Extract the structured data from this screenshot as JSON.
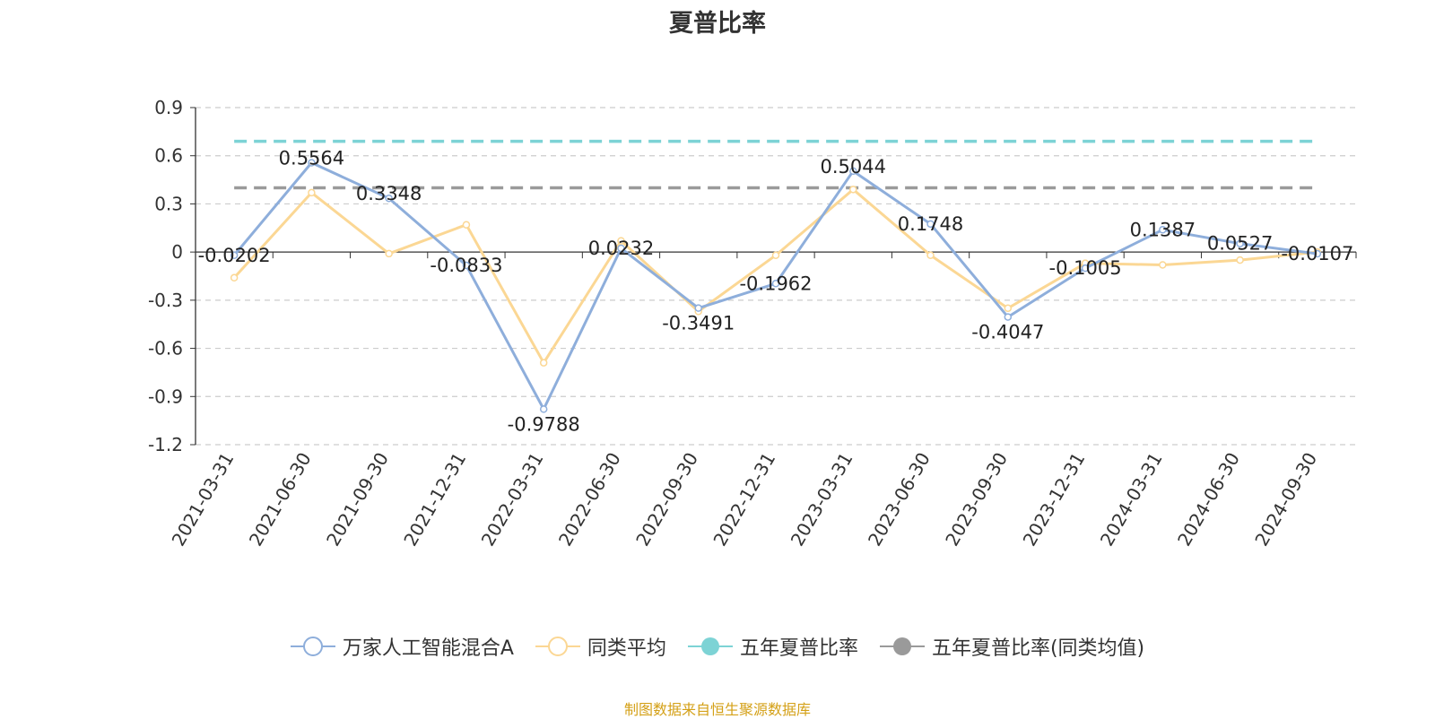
{
  "colors": {
    "series1": "#8eaedb",
    "series2": "#fbd794",
    "five_year": "#7dd3d5",
    "five_year_avg": "#9a9a9a",
    "axis": "#333333",
    "grid": "#cccccc",
    "source": "#d4a017"
  },
  "chart_data": {
    "type": "line",
    "title": "夏普比率",
    "categories": [
      "2021-03-31",
      "2021-06-30",
      "2021-09-30",
      "2021-12-31",
      "2022-03-31",
      "2022-06-30",
      "2022-09-30",
      "2022-12-31",
      "2023-03-31",
      "2023-06-30",
      "2023-09-30",
      "2023-12-31",
      "2024-03-31",
      "2024-06-30",
      "2024-09-30"
    ],
    "yticks": [
      "0.9",
      "0.6",
      "0.3",
      "0",
      "-0.3",
      "-0.6",
      "-0.9",
      "-1.2"
    ],
    "ylim": [
      -1.2,
      0.9
    ],
    "grid": true,
    "legend_position": "bottom",
    "series": [
      {
        "name": "万家人工智能混合A",
        "values": [
          -0.0202,
          0.5564,
          0.3348,
          -0.0833,
          -0.9788,
          0.0232,
          -0.3491,
          -0.1962,
          0.5044,
          0.1748,
          -0.4047,
          -0.1005,
          0.1387,
          0.0527,
          -0.0107
        ],
        "labels": [
          "-0.0202",
          "0.5564",
          "0.3348",
          "-0.0833",
          "-0.9788",
          "0.0232",
          "-0.3491",
          "-0.1962",
          "0.5044",
          "0.1748",
          "-0.4047",
          "-0.1005",
          "0.1387",
          "0.0527",
          "-0.0107"
        ]
      },
      {
        "name": "同类平均",
        "values": [
          -0.16,
          0.37,
          -0.01,
          0.17,
          -0.69,
          0.07,
          -0.37,
          -0.02,
          0.39,
          -0.02,
          -0.35,
          -0.07,
          -0.08,
          -0.05,
          0.0
        ]
      },
      {
        "name": "五年夏普比率",
        "constant": 0.69
      },
      {
        "name": "五年夏普比率(同类均值)",
        "constant": 0.4
      }
    ],
    "source": "制图数据来自恒生聚源数据库"
  }
}
